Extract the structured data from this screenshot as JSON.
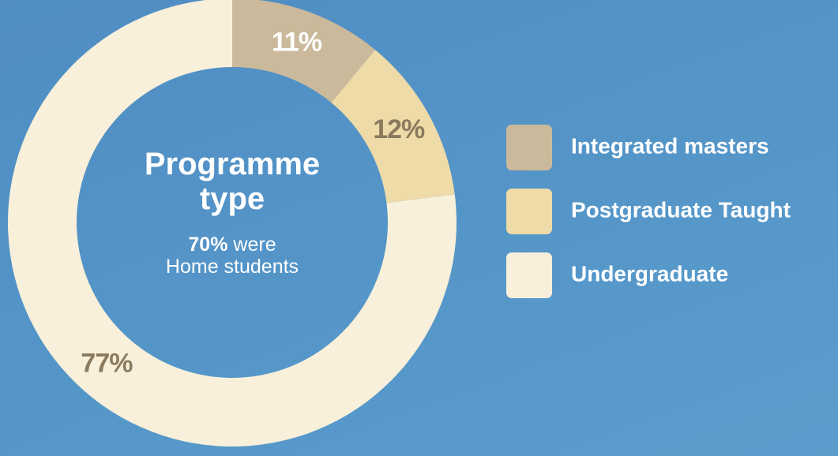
{
  "chart_data": {
    "type": "pie",
    "donut": true,
    "title": "Programme type",
    "annotation": {
      "highlight": "70%",
      "text": "were",
      "subtext": "Home students"
    },
    "categories": [
      "Integrated masters",
      "Postgraduate Taught",
      "Undergraduate"
    ],
    "values": [
      11,
      12,
      77
    ],
    "value_labels": [
      "11%",
      "12%",
      "77%"
    ],
    "colors": [
      "#cbb99b",
      "#eedba8",
      "#f8f0da"
    ],
    "label_colors": [
      "#ffffff",
      "#8a7a5e",
      "#8a7a5e"
    ],
    "legend": "right"
  }
}
